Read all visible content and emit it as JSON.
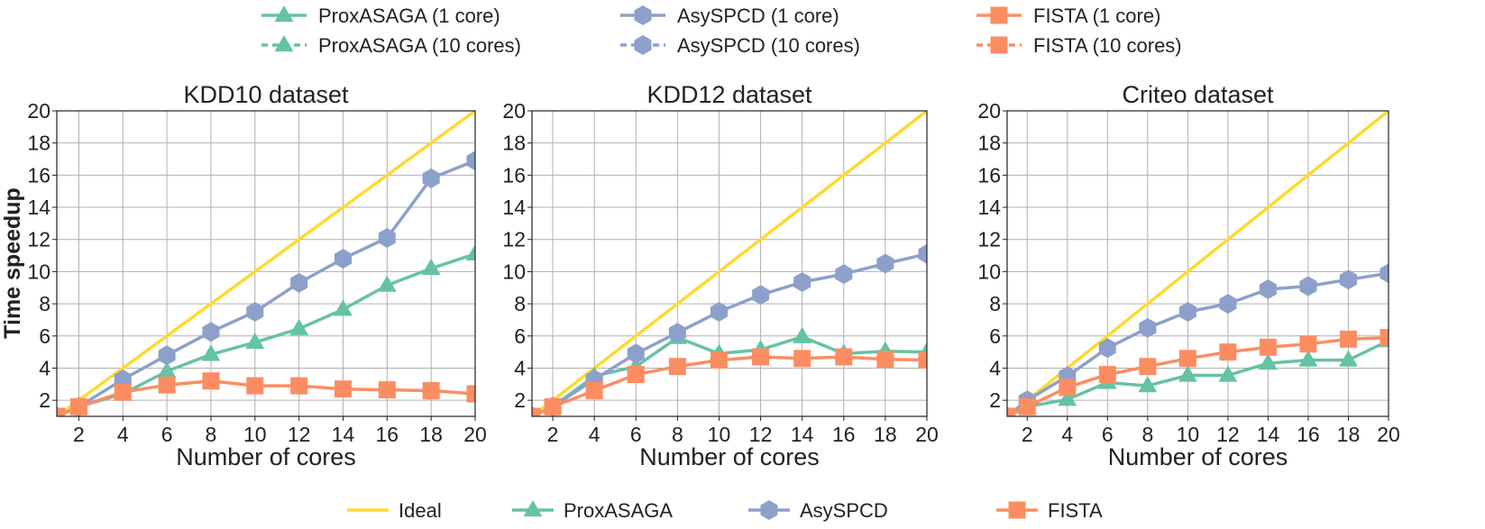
{
  "colors": {
    "ideal": "#ffd92f",
    "proxasaga": "#66c2a5",
    "asyspcd": "#8da0cb",
    "fista": "#fc8d62",
    "grid": "#b0b0b0"
  },
  "top_legend": [
    {
      "label": "ProxASAGA (1 core)",
      "series": "proxasaga",
      "marker": "triangle",
      "dash": "solid"
    },
    {
      "label": "AsySPCD (1 core)",
      "series": "asyspcd",
      "marker": "hexagon",
      "dash": "solid"
    },
    {
      "label": "FISTA (1 core)",
      "series": "fista",
      "marker": "square",
      "dash": "solid"
    },
    {
      "label": "ProxASAGA (10 cores)",
      "series": "proxasaga",
      "marker": "triangle",
      "dash": "dashed"
    },
    {
      "label": "AsySPCD (10 cores)",
      "series": "asyspcd",
      "marker": "hexagon",
      "dash": "dashed"
    },
    {
      "label": "FISTA (10 cores)",
      "series": "fista",
      "marker": "square",
      "dash": "dashed"
    }
  ],
  "bottom_legend": [
    {
      "label": "Ideal",
      "series": "ideal",
      "marker": "none"
    },
    {
      "label": "ProxASAGA",
      "series": "proxasaga",
      "marker": "triangle"
    },
    {
      "label": "AsySPCD",
      "series": "asyspcd",
      "marker": "hexagon"
    },
    {
      "label": "FISTA",
      "series": "fista",
      "marker": "square"
    }
  ],
  "chart_data": [
    {
      "type": "line",
      "title": "KDD10 dataset",
      "xlabel": "Number of cores",
      "ylabel": "Time speedup",
      "xlim": [
        1,
        20
      ],
      "ylim": [
        1,
        20
      ],
      "xticks": [
        2,
        4,
        6,
        8,
        10,
        12,
        14,
        16,
        18,
        20
      ],
      "yticks": [
        2,
        4,
        6,
        8,
        10,
        12,
        14,
        16,
        18,
        20
      ],
      "grid": true,
      "x": [
        1,
        2,
        4,
        6,
        8,
        10,
        12,
        14,
        16,
        18,
        20
      ],
      "series": [
        {
          "name": "Ideal",
          "key": "ideal",
          "values": [
            1,
            2,
            4,
            6,
            8,
            10,
            12,
            14,
            16,
            18,
            20
          ]
        },
        {
          "name": "ProxASAGA",
          "key": "proxasaga",
          "values": [
            1.0,
            1.6,
            2.4,
            3.8,
            4.85,
            5.6,
            6.45,
            7.65,
            9.15,
            10.2,
            11.1
          ]
        },
        {
          "name": "AsySPCD",
          "key": "asyspcd",
          "values": [
            1.0,
            1.6,
            3.3,
            4.8,
            6.25,
            7.5,
            9.3,
            10.8,
            12.1,
            15.8,
            16.9
          ]
        },
        {
          "name": "FISTA",
          "key": "fista",
          "values": [
            1.0,
            1.6,
            2.5,
            2.95,
            3.2,
            2.9,
            2.9,
            2.7,
            2.65,
            2.6,
            2.4
          ]
        }
      ]
    },
    {
      "type": "line",
      "title": "KDD12 dataset",
      "xlabel": "Number of cores",
      "ylabel": "",
      "xlim": [
        1,
        20
      ],
      "ylim": [
        1,
        20
      ],
      "xticks": [
        2,
        4,
        6,
        8,
        10,
        12,
        14,
        16,
        18,
        20
      ],
      "yticks": [
        2,
        4,
        6,
        8,
        10,
        12,
        14,
        16,
        18,
        20
      ],
      "grid": true,
      "x": [
        1,
        2,
        4,
        6,
        8,
        10,
        12,
        14,
        16,
        18,
        20
      ],
      "series": [
        {
          "name": "Ideal",
          "key": "ideal",
          "values": [
            1,
            2,
            4,
            6,
            8,
            10,
            12,
            14,
            16,
            18,
            20
          ]
        },
        {
          "name": "ProxASAGA",
          "key": "proxasaga",
          "values": [
            1.0,
            1.6,
            3.5,
            4.1,
            5.9,
            4.9,
            5.15,
            5.95,
            4.9,
            5.05,
            5.0
          ]
        },
        {
          "name": "AsySPCD",
          "key": "asyspcd",
          "values": [
            1.0,
            1.6,
            3.3,
            4.9,
            6.2,
            7.5,
            8.55,
            9.35,
            9.85,
            10.5,
            11.1
          ]
        },
        {
          "name": "FISTA",
          "key": "fista",
          "values": [
            1.0,
            1.6,
            2.6,
            3.6,
            4.1,
            4.5,
            4.7,
            4.6,
            4.7,
            4.55,
            4.5
          ]
        }
      ]
    },
    {
      "type": "line",
      "title": "Criteo dataset",
      "xlabel": "Number of cores",
      "ylabel": "",
      "xlim": [
        1,
        20
      ],
      "ylim": [
        1,
        20
      ],
      "xticks": [
        2,
        4,
        6,
        8,
        10,
        12,
        14,
        16,
        18,
        20
      ],
      "yticks": [
        2,
        4,
        6,
        8,
        10,
        12,
        14,
        16,
        18,
        20
      ],
      "grid": true,
      "x": [
        1,
        2,
        4,
        6,
        8,
        10,
        12,
        14,
        16,
        18,
        20
      ],
      "series": [
        {
          "name": "Ideal",
          "key": "ideal",
          "values": [
            1,
            2,
            4,
            6,
            8,
            10,
            12,
            14,
            16,
            18,
            20
          ]
        },
        {
          "name": "ProxASAGA",
          "key": "proxasaga",
          "values": [
            1.0,
            1.6,
            2.05,
            3.1,
            2.9,
            3.55,
            3.55,
            4.3,
            4.5,
            4.5,
            5.7
          ]
        },
        {
          "name": "AsySPCD",
          "key": "asyspcd",
          "values": [
            1.0,
            2.0,
            3.5,
            5.25,
            6.5,
            7.5,
            8.0,
            8.9,
            9.1,
            9.5,
            9.9
          ]
        },
        {
          "name": "FISTA",
          "key": "fista",
          "values": [
            1.0,
            1.6,
            2.8,
            3.6,
            4.1,
            4.6,
            5.0,
            5.3,
            5.5,
            5.8,
            5.9
          ]
        }
      ]
    }
  ]
}
